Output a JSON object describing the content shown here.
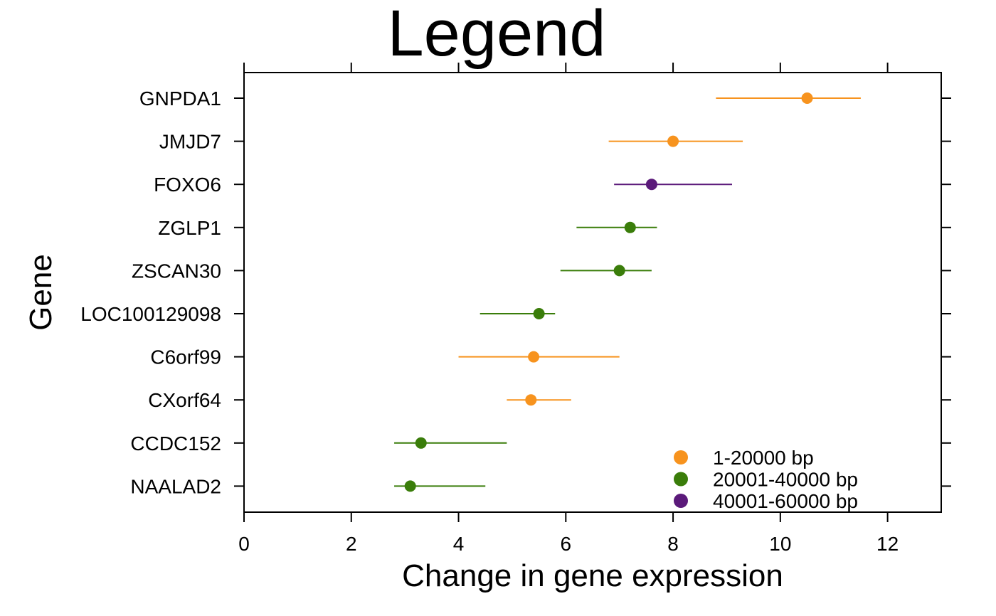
{
  "chart_data": {
    "type": "scatter",
    "title": "Legend",
    "xlabel": "Change in gene expression",
    "ylabel": "Gene",
    "xlim": [
      0,
      13
    ],
    "xticks": [
      0,
      2,
      4,
      6,
      8,
      10,
      12
    ],
    "grid": false,
    "legend_position": "bottom-right",
    "categories": [
      "GNPDA1",
      "JMJD7",
      "FOXO6",
      "ZGLP1",
      "ZSCAN30",
      "LOC100129098",
      "C6orf99",
      "CXorf64",
      "CCDC152",
      "NAALAD2"
    ],
    "groups": [
      {
        "name": "1-20000 bp",
        "color": "#F7931E"
      },
      {
        "name": "20001-40000 bp",
        "color": "#3A7D0A"
      },
      {
        "name": "40001-60000 bp",
        "color": "#5B1A7A"
      }
    ],
    "points": [
      {
        "gene": "GNPDA1",
        "value": 10.5,
        "low": 8.8,
        "high": 11.5,
        "group": 0
      },
      {
        "gene": "JMJD7",
        "value": 8.0,
        "low": 6.8,
        "high": 9.3,
        "group": 0
      },
      {
        "gene": "FOXO6",
        "value": 7.6,
        "low": 6.9,
        "high": 9.1,
        "group": 2
      },
      {
        "gene": "ZGLP1",
        "value": 7.2,
        "low": 6.2,
        "high": 7.7,
        "group": 1
      },
      {
        "gene": "ZSCAN30",
        "value": 7.0,
        "low": 5.9,
        "high": 7.6,
        "group": 1
      },
      {
        "gene": "LOC100129098",
        "value": 5.5,
        "low": 4.4,
        "high": 5.8,
        "group": 1
      },
      {
        "gene": "C6orf99",
        "value": 5.4,
        "low": 4.0,
        "high": 7.0,
        "group": 0
      },
      {
        "gene": "CXorf64",
        "value": 5.35,
        "low": 4.9,
        "high": 6.1,
        "group": 0
      },
      {
        "gene": "CCDC152",
        "value": 3.3,
        "low": 2.8,
        "high": 4.9,
        "group": 1
      },
      {
        "gene": "NAALAD2",
        "value": 3.1,
        "low": 2.8,
        "high": 4.5,
        "group": 1
      }
    ]
  }
}
